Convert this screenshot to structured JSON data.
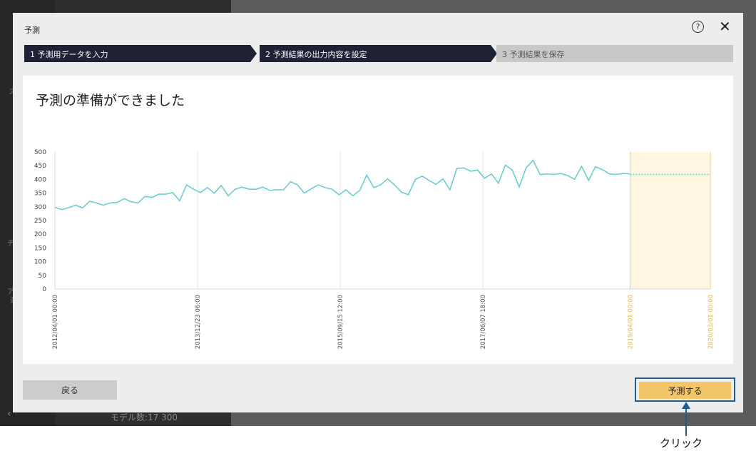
{
  "background": {
    "footer_text": "モデル数:17 300",
    "back_arrow": "‹",
    "fragments": [
      "ス",
      "チ",
      "ア",
      "選"
    ]
  },
  "dialog": {
    "title": "予測",
    "help_icon": "?",
    "close_icon": "✕"
  },
  "steps": [
    {
      "label": "1 予測用データを入力",
      "state": "done"
    },
    {
      "label": "2 予測結果の出力内容を設定",
      "state": "done"
    },
    {
      "label": "3 予測結果を保存",
      "state": "current"
    }
  ],
  "panel": {
    "title": "予測の準備ができました"
  },
  "colors": {
    "step_dark": "#1f2235",
    "step_light": "#c8c8c8",
    "series_line": "#6ecdcf",
    "forecast_fill": "#fff5e1",
    "forecast_line": "#f2d28e",
    "predict_button": "#f3c669",
    "highlight_border": "#1e5d8e"
  },
  "chart_data": {
    "type": "line",
    "ylim": [
      0,
      500
    ],
    "yticks": [
      0,
      50,
      100,
      150,
      200,
      250,
      300,
      350,
      400,
      450,
      500
    ],
    "xtick_labels": [
      {
        "label": "2012/04/01 00:00",
        "index": 0,
        "forecast": false
      },
      {
        "label": "2013/12/23 06:00",
        "index": 32,
        "forecast": false
      },
      {
        "label": "2015/09/15 12:00",
        "index": 64,
        "forecast": false
      },
      {
        "label": "2017/06/07 18:00",
        "index": 96,
        "forecast": false
      },
      {
        "label": "2019/04/01 00:00",
        "index": 129,
        "forecast": true
      },
      {
        "label": "2020/03/01 00:00",
        "index": 147,
        "forecast": true
      }
    ],
    "forecast_start_index": 129,
    "forecast_end_index": 147,
    "forecast_value": 418,
    "series": [
      {
        "values": [
          298,
          290,
          297,
          306,
          296,
          320,
          314,
          306,
          314,
          316,
          330,
          318,
          314,
          338,
          334,
          346,
          346,
          352,
          322,
          380,
          364,
          352,
          370,
          350,
          378,
          340,
          364,
          372,
          364,
          364,
          372,
          360,
          362,
          362,
          392,
          380,
          350,
          366,
          380,
          370,
          364,
          344,
          362,
          340,
          360,
          416,
          370,
          380,
          402,
          380,
          354,
          344,
          400,
          412,
          396,
          382,
          402,
          362,
          440,
          442,
          430,
          434,
          404,
          420,
          386,
          452,
          434,
          372,
          442,
          470,
          418,
          420,
          418,
          422,
          414,
          400,
          448,
          396,
          446,
          436,
          420,
          418,
          422,
          420
        ]
      }
    ]
  },
  "buttons": {
    "back": "戻る",
    "predict": "予測する"
  },
  "callout": {
    "text": "クリック"
  }
}
